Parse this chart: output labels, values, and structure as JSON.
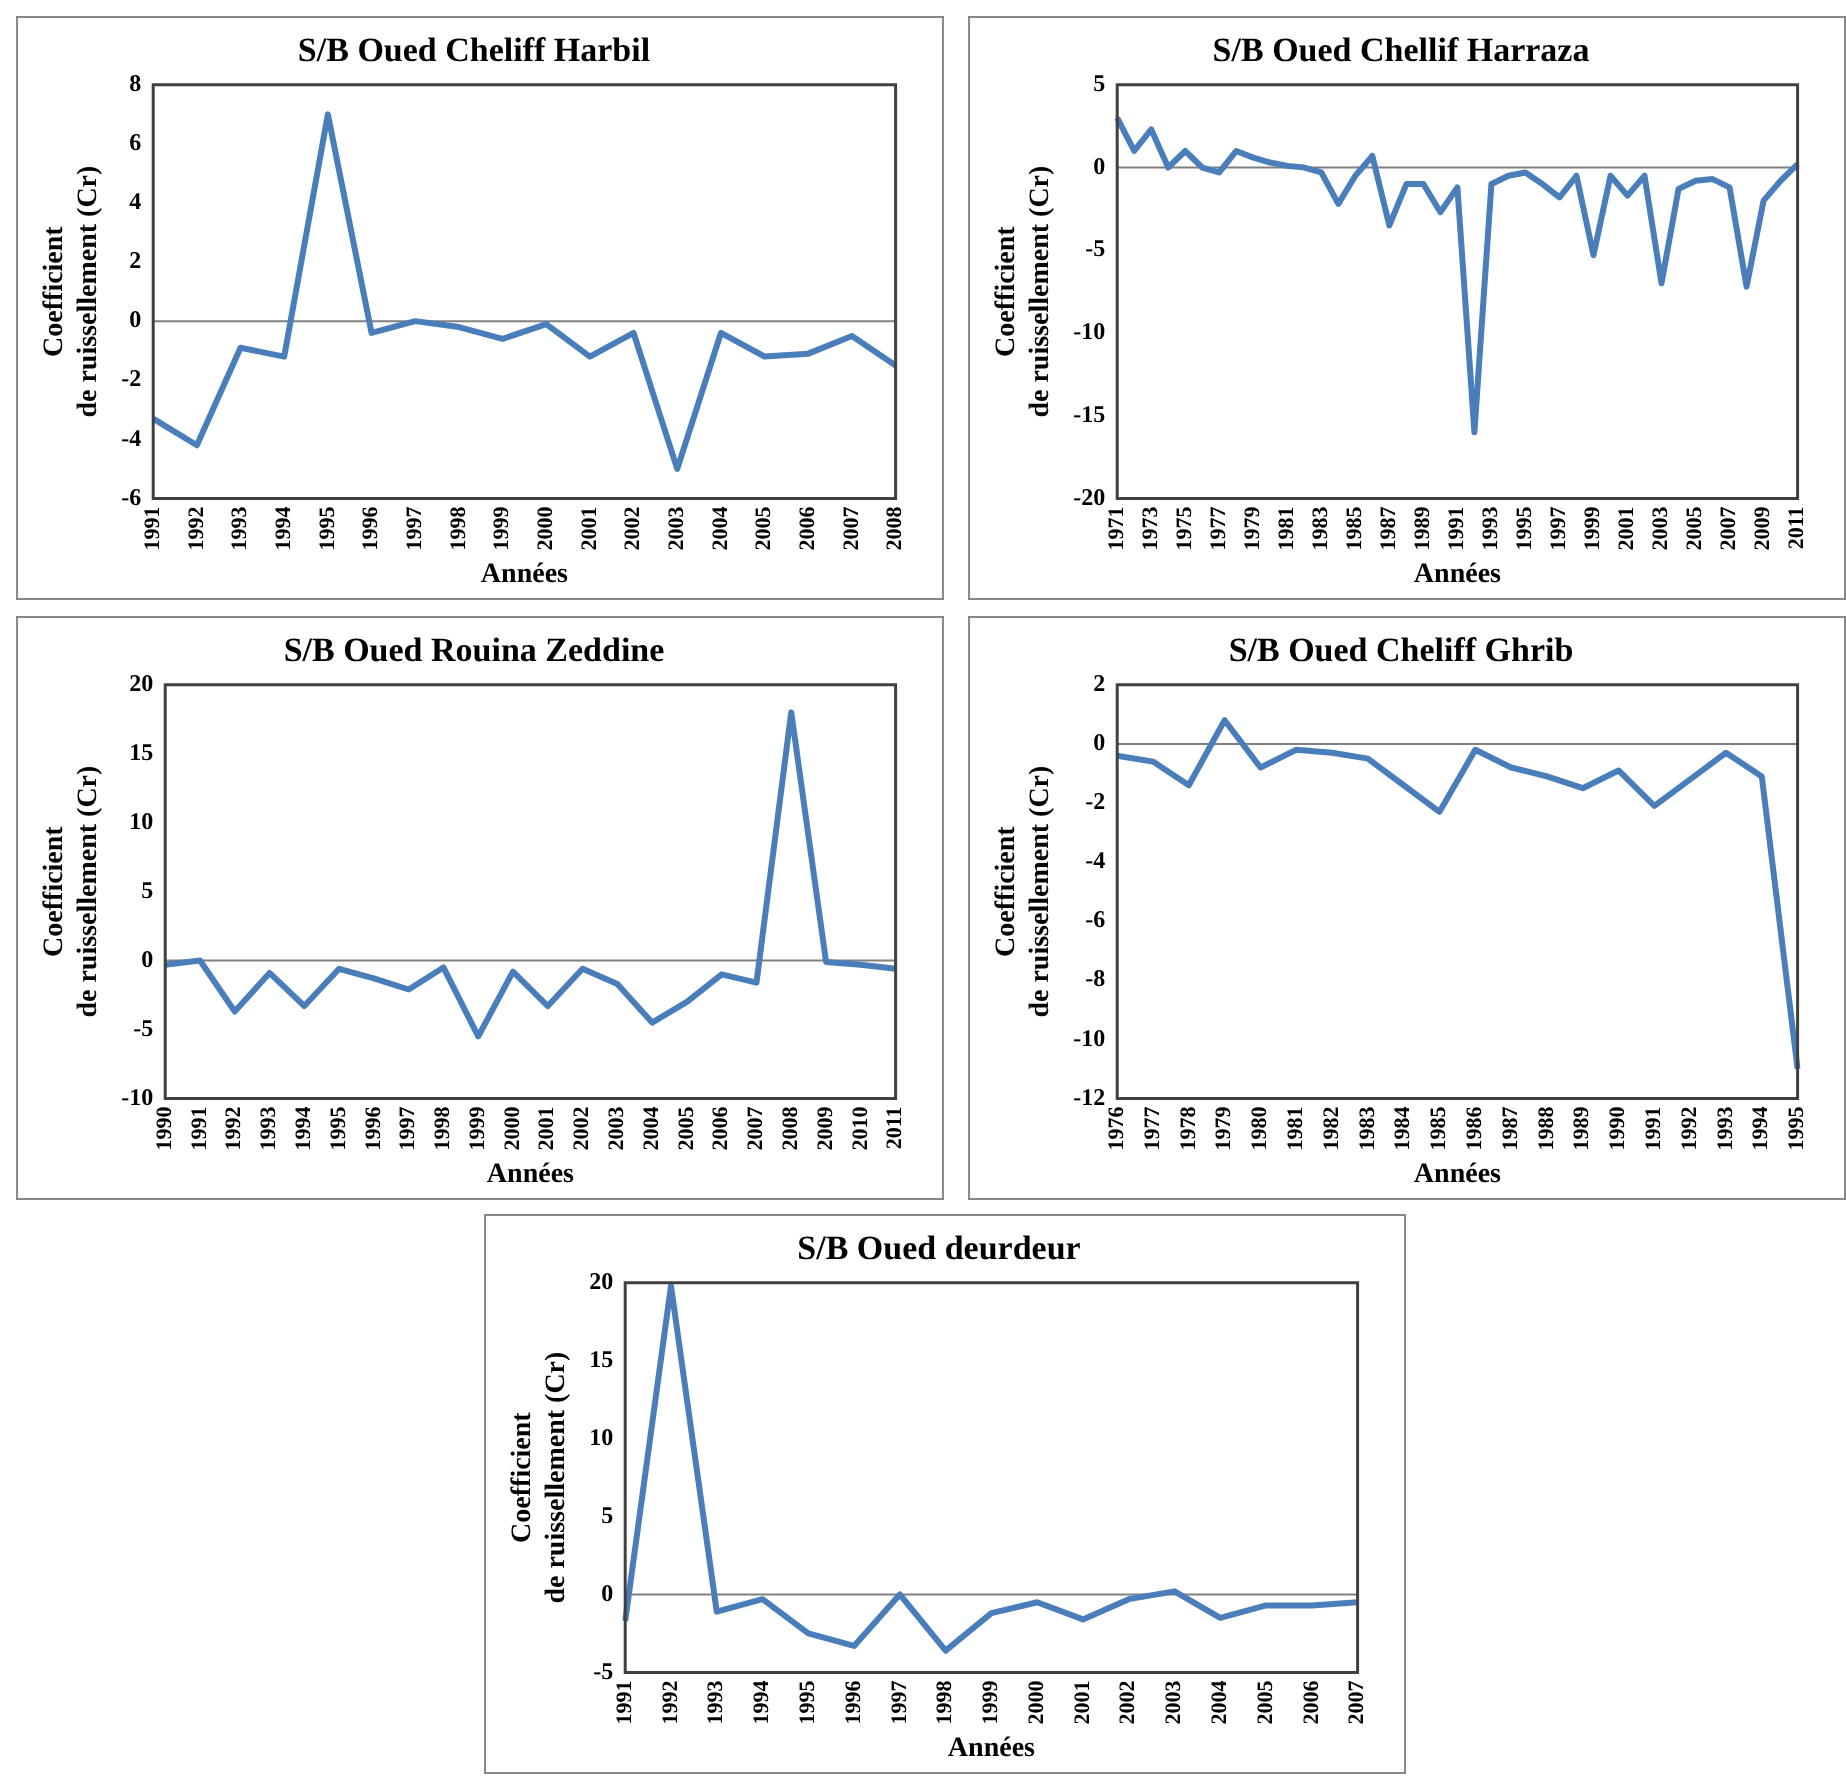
{
  "chart_data": [
    {
      "type": "line",
      "title": "S/B Oued Cheliff Harbil",
      "xlabel": "Années",
      "ylabel": "Coefficient\nde ruissellement (Cr)",
      "categories": [
        "1991",
        "1992",
        "1993",
        "1994",
        "1995",
        "1996",
        "1997",
        "1998",
        "1999",
        "2000",
        "2001",
        "2002",
        "2003",
        "2004",
        "2005",
        "2006",
        "2007",
        "2008"
      ],
      "series": [
        {
          "color": "#4a7ebb",
          "values": [
            -3.3,
            -4.2,
            -0.9,
            -1.2,
            7,
            -0.4,
            0,
            -0.2,
            -0.6,
            -0.1,
            -1.2,
            -0.4,
            -5,
            -0.4,
            -1.2,
            -1.1,
            -0.5,
            -1.5
          ]
        }
      ],
      "ylim": [
        -6,
        8
      ],
      "yticks": [
        -6,
        -4,
        -2,
        0,
        2,
        4,
        6,
        8
      ],
      "ref_lines": [
        {
          "axis": "y",
          "value": 0,
          "color": "#808080"
        }
      ],
      "grid": false,
      "legend": false,
      "marker": "none"
    },
    {
      "type": "line",
      "title": "S/B Oued Chellif Harraza",
      "xlabel": "Années",
      "ylabel": "Coefficient\nde ruissellement (Cr)",
      "categories": [
        "1971",
        null,
        "1973",
        null,
        "1975",
        null,
        "1977",
        null,
        "1979",
        null,
        "1981",
        null,
        "1983",
        null,
        "1985",
        null,
        "1987",
        null,
        "1989",
        null,
        "1991",
        null,
        "1993",
        null,
        "1995",
        null,
        "1997",
        null,
        "1999",
        null,
        "2001",
        null,
        "2003",
        null,
        "2005",
        null,
        "2007",
        null,
        "2009",
        null,
        "2011"
      ],
      "series": [
        {
          "color": "#4a7ebb",
          "values": [
            3,
            1,
            2.3,
            0,
            1,
            0,
            -0.3,
            1,
            0.6,
            0.3,
            0.1,
            0,
            -0.3,
            -2.2,
            -0.5,
            0.7,
            -3.5,
            -1,
            -1,
            -2.7,
            -1.2,
            -16,
            -1,
            -0.5,
            -0.3,
            -1,
            -1.8,
            -0.5,
            -5.3,
            -0.5,
            -1.7,
            -0.5,
            -7,
            -1.3,
            -0.8,
            -0.7,
            -1.2,
            -7.2,
            -2,
            -0.8,
            0.2
          ]
        }
      ],
      "ylim": [
        -20,
        5
      ],
      "yticks": [
        -20,
        -15,
        -10,
        -5,
        0,
        5
      ],
      "ref_lines": [
        {
          "axis": "y",
          "value": 0,
          "color": "#808080"
        }
      ],
      "grid": false,
      "legend": false,
      "marker": "none"
    },
    {
      "type": "line",
      "title": "S/B Oued Rouina Zeddine",
      "xlabel": "Années",
      "ylabel": "Coefficient\nde ruissellement (Cr)",
      "categories": [
        "1990",
        "1991",
        "1992",
        "1993",
        "1994",
        "1995",
        "1996",
        "1997",
        "1998",
        "1999",
        "2000",
        "2001",
        "2002",
        "2003",
        "2004",
        "2005",
        "2006",
        "2007",
        "2008",
        "2009",
        "2010",
        "2011"
      ],
      "series": [
        {
          "color": "#4a7ebb",
          "values": [
            -0.3,
            0,
            -3.7,
            -0.9,
            -3.3,
            -0.6,
            -1.3,
            -2.1,
            -0.5,
            -5.5,
            -0.8,
            -3.3,
            -0.6,
            -1.7,
            -4.5,
            -3,
            -1,
            -1.6,
            18,
            -0.1,
            -0.3,
            -0.6
          ]
        }
      ],
      "ylim": [
        -10,
        20
      ],
      "yticks": [
        -10,
        -5,
        0,
        5,
        10,
        15,
        20
      ],
      "ref_lines": [
        {
          "axis": "y",
          "value": 0,
          "color": "#808080"
        }
      ],
      "grid": false,
      "legend": false,
      "marker": "none"
    },
    {
      "type": "line",
      "title": "S/B Oued Cheliff Ghrib",
      "xlabel": "Années",
      "ylabel": "Coefficient\nde ruissellement (Cr)",
      "categories": [
        "1976",
        "1977",
        "1978",
        "1979",
        "1980",
        "1981",
        "1982",
        "1983",
        "1984",
        "1985",
        "1986",
        "1987",
        "1988",
        "1989",
        "1990",
        "1991",
        "1992",
        "1993",
        "1994",
        "1995"
      ],
      "series": [
        {
          "color": "#4a7ebb",
          "values": [
            -0.4,
            -0.6,
            -1.4,
            0.8,
            -0.8,
            -0.2,
            -0.3,
            -0.5,
            -1.4,
            -2.3,
            -0.2,
            -0.8,
            -1.1,
            -1.5,
            -0.9,
            -2.1,
            -1.2,
            -0.3,
            -1.1,
            -11
          ]
        }
      ],
      "ylim": [
        -12,
        2
      ],
      "yticks": [
        -12,
        -10,
        -8,
        -6,
        -4,
        -2,
        0,
        2
      ],
      "ref_lines": [
        {
          "axis": "y",
          "value": 0,
          "color": "#808080"
        }
      ],
      "grid": false,
      "legend": false,
      "marker": "none"
    },
    {
      "type": "line",
      "title": "S/B Oued deurdeur",
      "xlabel": "Années",
      "ylabel": "Coefficient\nde ruissellement (Cr)",
      "categories": [
        "1991",
        "1992",
        "1993",
        "1994",
        "1995",
        "1996",
        "1997",
        "1998",
        "1999",
        "2000",
        "2001",
        "2002",
        "2003",
        "2004",
        "2005",
        "2006",
        "2007"
      ],
      "series": [
        {
          "color": "#4a7ebb",
          "values": [
            -1.7,
            19.8,
            -1.1,
            -0.3,
            -2.5,
            -3.3,
            0,
            -3.6,
            -1.2,
            -0.5,
            -1.6,
            -0.3,
            0.2,
            -1.5,
            -0.7,
            -0.7,
            -0.5
          ]
        }
      ],
      "ylim": [
        -5,
        20
      ],
      "yticks": [
        -5,
        0,
        5,
        10,
        15,
        20
      ],
      "ref_lines": [
        {
          "axis": "y",
          "value": 0,
          "color": "#808080"
        }
      ],
      "grid": false,
      "legend": false,
      "marker": "none"
    }
  ]
}
